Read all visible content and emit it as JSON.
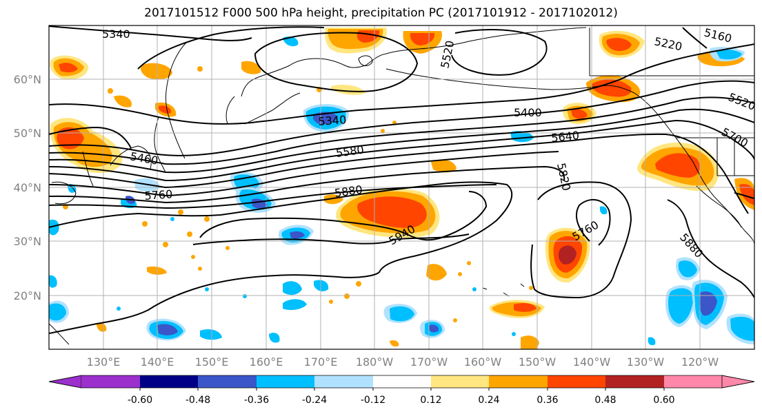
{
  "title": "2017101512 F000 500 hPa height, precipitation PC (2017101912 - 2017102012)",
  "map": {
    "lat_labels": [
      "60°N",
      "50°N",
      "40°N",
      "30°N",
      "20°N"
    ],
    "lon_labels": [
      "130°E",
      "140°E",
      "150°E",
      "160°E",
      "170°E",
      "180°W",
      "170°W",
      "160°W",
      "150°W",
      "140°W",
      "130°W",
      "120°W"
    ],
    "contour_labels": [
      "5340",
      "5340",
      "5460",
      "5760",
      "5220",
      "5160",
      "5400",
      "5580",
      "5640",
      "5520",
      "5700",
      "5820",
      "5880",
      "5940",
      "5760",
      "5880",
      "5520"
    ]
  },
  "colorbar": {
    "ticks": [
      "-0.60",
      "-0.48",
      "-0.36",
      "-0.24",
      "-0.12",
      "0.12",
      "0.24",
      "0.36",
      "0.48",
      "0.60"
    ],
    "colors": [
      "#9b30cc",
      "#000087",
      "#3a56c8",
      "#00bfff",
      "#b0e2ff",
      "#ffffff",
      "#ffe680",
      "#ffa500",
      "#ff4500",
      "#b22222",
      "#ff88aa"
    ]
  },
  "palette": {
    "neg_light": "#b0e2ff",
    "neg_mid": "#00bfff",
    "neg_dark": "#3a56c8",
    "pos_light": "#ffe680",
    "pos_mid": "#ffa500",
    "pos_dark": "#ff4500",
    "pos_deep": "#b22222"
  }
}
